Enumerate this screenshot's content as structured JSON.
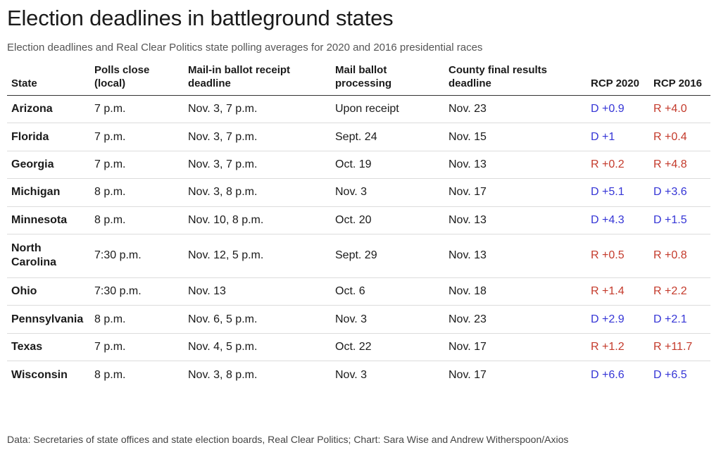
{
  "title": "Election deadlines in battleground states",
  "subtitle": "Election deadlines and Real Clear Politics state polling averages for 2020 and 2016 presidential races",
  "source": "Data: Secretaries of state offices and state election boards, Real Clear Politics; Chart: Sara Wise and Andrew Witherspoon/Axios",
  "colors": {
    "dem": "#3535d6",
    "rep": "#c43a2b"
  },
  "chart_data": {
    "type": "table",
    "columns": [
      "State",
      "Polls close (local)",
      "Mail-in ballot receipt deadline",
      "Mail ballot processing",
      "County final results deadline",
      "RCP 2020",
      "RCP 2016"
    ],
    "rows": [
      {
        "state": "Arizona",
        "polls_close": "7 p.m.",
        "mail_receipt": "Nov. 3, 7 p.m.",
        "processing": "Upon receipt",
        "county_final": "Nov. 23",
        "rcp2020": "D +0.9",
        "rcp2016": "R +4.0"
      },
      {
        "state": "Florida",
        "polls_close": "7 p.m.",
        "mail_receipt": "Nov. 3, 7 p.m.",
        "processing": "Sept. 24",
        "county_final": "Nov. 15",
        "rcp2020": "D +1",
        "rcp2016": "R +0.4"
      },
      {
        "state": "Georgia",
        "polls_close": "7 p.m.",
        "mail_receipt": "Nov. 3, 7 p.m.",
        "processing": "Oct. 19",
        "county_final": "Nov. 13",
        "rcp2020": "R +0.2",
        "rcp2016": "R +4.8"
      },
      {
        "state": "Michigan",
        "polls_close": "8 p.m.",
        "mail_receipt": "Nov. 3, 8 p.m.",
        "processing": "Nov. 3",
        "county_final": "Nov. 17",
        "rcp2020": "D +5.1",
        "rcp2016": "D +3.6"
      },
      {
        "state": "Minnesota",
        "polls_close": "8 p.m.",
        "mail_receipt": "Nov. 10, 8 p.m.",
        "processing": "Oct. 20",
        "county_final": "Nov. 13",
        "rcp2020": "D +4.3",
        "rcp2016": "D +1.5"
      },
      {
        "state": "North Carolina",
        "polls_close": "7:30 p.m.",
        "mail_receipt": "Nov. 12, 5 p.m.",
        "processing": "Sept. 29",
        "county_final": "Nov. 13",
        "rcp2020": "R +0.5",
        "rcp2016": "R +0.8"
      },
      {
        "state": "Ohio",
        "polls_close": "7:30 p.m.",
        "mail_receipt": "Nov. 13",
        "processing": "Oct. 6",
        "county_final": "Nov. 18",
        "rcp2020": "R +1.4",
        "rcp2016": "R +2.2"
      },
      {
        "state": "Pennsylvania",
        "polls_close": "8 p.m.",
        "mail_receipt": "Nov. 6, 5 p.m.",
        "processing": "Nov. 3",
        "county_final": "Nov. 23",
        "rcp2020": "D +2.9",
        "rcp2016": "D +2.1"
      },
      {
        "state": "Texas",
        "polls_close": "7 p.m.",
        "mail_receipt": "Nov. 4, 5 p.m.",
        "processing": "Oct. 22",
        "county_final": "Nov. 17",
        "rcp2020": "R +1.2",
        "rcp2016": "R +11.7"
      },
      {
        "state": "Wisconsin",
        "polls_close": "8 p.m.",
        "mail_receipt": "Nov. 3, 8 p.m.",
        "processing": "Nov. 3",
        "county_final": "Nov. 17",
        "rcp2020": "D +6.6",
        "rcp2016": "D +6.5"
      }
    ]
  }
}
